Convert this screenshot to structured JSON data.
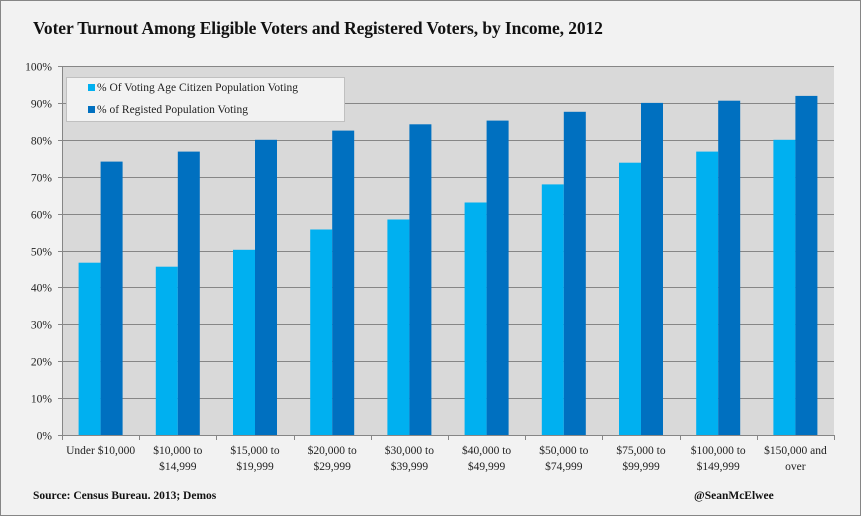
{
  "title": "Voter Turnout Among Eligible Voters and Registered Voters, by Income, 2012",
  "footer": {
    "source": "Source: Census  Bureau.  2013;  Demos",
    "credit": "@SeanMcElwee"
  },
  "colors": {
    "series_light": "#00b0f0",
    "series_dark": "#0070c0",
    "plot_background": "#d9d9d9",
    "page_background": "#f2f2f2",
    "gridline": "#868686"
  },
  "chart_data": {
    "type": "bar",
    "title": "Voter Turnout Among Eligible Voters and Registered Voters, by Income, 2012",
    "xlabel": "",
    "ylabel": "",
    "ylim": [
      0,
      100
    ],
    "ytick_step": 10,
    "ytick_labels": [
      "0%",
      "10%",
      "20%",
      "30%",
      "40%",
      "50%",
      "60%",
      "70%",
      "80%",
      "90%",
      "100%"
    ],
    "grid": true,
    "legend_position": "top-left",
    "categories": [
      [
        "Under $10,000"
      ],
      [
        "$10,000 to",
        "$14,999"
      ],
      [
        "$15,000 to",
        "$19,999"
      ],
      [
        "$20,000 to",
        "$29,999"
      ],
      [
        "$30,000 to",
        "$39,999"
      ],
      [
        "$40,000 to",
        "$49,999"
      ],
      [
        "$50,000 to",
        "$74,999"
      ],
      [
        "$75,000 to",
        "$99,999"
      ],
      [
        "$100,000 to",
        "$149,999"
      ],
      [
        "$150,000 and",
        "over"
      ]
    ],
    "series": [
      {
        "name": "% Of Voting Age Citizen Population Voting",
        "color": "#00b0f0",
        "values": [
          46.7,
          45.6,
          50.2,
          55.7,
          58.4,
          63.0,
          67.9,
          73.8,
          76.8,
          80.0
        ]
      },
      {
        "name": "% of Registed Population Voting",
        "color": "#0070c0",
        "values": [
          74.1,
          76.8,
          80.0,
          82.5,
          84.2,
          85.2,
          87.6,
          90.0,
          90.6,
          91.9
        ]
      }
    ]
  }
}
